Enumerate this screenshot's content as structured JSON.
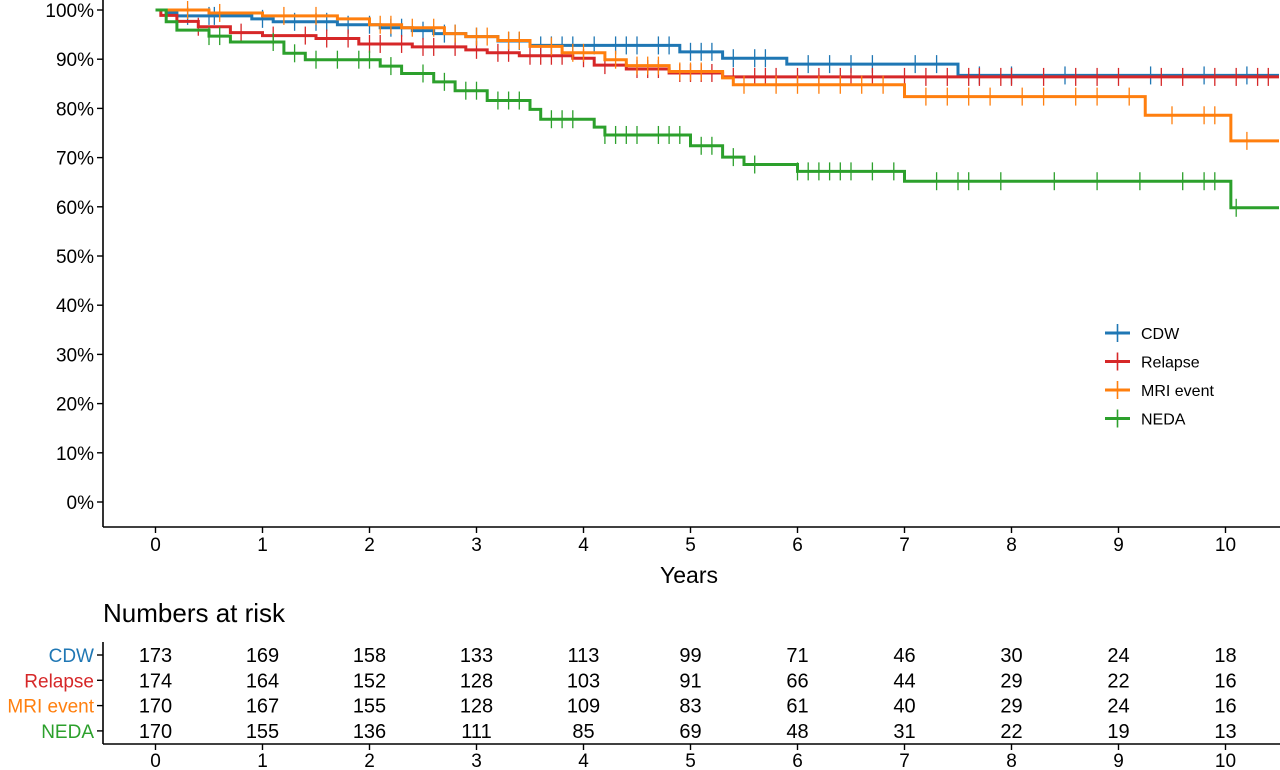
{
  "chart_data": [
    {
      "type": "line",
      "subtype": "kaplan-meier step curve with censor marks",
      "title": "",
      "xlabel": "Years",
      "ylabel": "",
      "xlim": [
        -0.5,
        10.5
      ],
      "ylim": [
        0,
        100
      ],
      "x_ticks": [
        0,
        1,
        2,
        3,
        4,
        5,
        6,
        7,
        8,
        9,
        10
      ],
      "x_tick_labels": [
        "0",
        "1",
        "2",
        "3",
        "4",
        "5",
        "6",
        "7",
        "8",
        "9",
        "10"
      ],
      "y_ticks": [
        0,
        10,
        20,
        30,
        40,
        50,
        60,
        70,
        80,
        90,
        100
      ],
      "y_tick_labels": [
        "0%",
        "10%",
        "20%",
        "30%",
        "40%",
        "50%",
        "60%",
        "70%",
        "80%",
        "90%",
        "100%"
      ],
      "grid": false,
      "legend_position": "right, lower half of plot",
      "series": [
        {
          "name": "CDW",
          "color": "#1f77b4",
          "steps": [
            [
              0,
              100
            ],
            [
              0.1,
              99.4
            ],
            [
              0.2,
              98.8
            ],
            [
              0.6,
              98.8
            ],
            [
              0.9,
              98.2
            ],
            [
              1.1,
              97.6
            ],
            [
              1.7,
              97.0
            ],
            [
              2.1,
              96.4
            ],
            [
              2.4,
              95.8
            ],
            [
              2.6,
              95.2
            ],
            [
              2.9,
              94.6
            ],
            [
              3.2,
              93.7
            ],
            [
              3.5,
              92.8
            ],
            [
              4.6,
              92.8
            ],
            [
              4.9,
              91.5
            ],
            [
              5.3,
              90.2
            ],
            [
              5.5,
              90.2
            ],
            [
              5.9,
              89.0
            ],
            [
              7.45,
              89.0
            ],
            [
              7.5,
              86.7
            ],
            [
              10.5,
              86.7
            ]
          ],
          "censor_times": [
            0.3,
            0.5,
            0.55,
            1.0,
            1.3,
            1.5,
            1.6,
            1.8,
            2.0,
            2.2,
            2.3,
            2.5,
            2.7,
            2.8,
            3.0,
            3.3,
            3.4,
            3.6,
            3.7,
            3.8,
            3.9,
            4.1,
            4.3,
            4.4,
            4.5,
            4.7,
            4.8,
            5.0,
            5.1,
            5.2,
            5.4,
            5.6,
            5.7,
            6.1,
            6.3,
            6.5,
            6.7,
            7.1,
            7.3,
            7.7,
            8.0,
            8.5,
            9.3,
            9.8,
            10.2
          ]
        },
        {
          "name": "Relapse",
          "color": "#d62728",
          "steps": [
            [
              0,
              100
            ],
            [
              0.05,
              98.9
            ],
            [
              0.2,
              97.7
            ],
            [
              0.4,
              96.6
            ],
            [
              0.7,
              95.4
            ],
            [
              1.0,
              94.8
            ],
            [
              1.5,
              94.2
            ],
            [
              1.9,
              93.1
            ],
            [
              2.4,
              92.5
            ],
            [
              2.9,
              91.9
            ],
            [
              3.1,
              91.3
            ],
            [
              3.4,
              90.7
            ],
            [
              3.9,
              90.2
            ],
            [
              4.1,
              88.8
            ],
            [
              4.4,
              88.0
            ],
            [
              4.8,
              87.2
            ],
            [
              5.3,
              86.4
            ],
            [
              5.5,
              86.4
            ],
            [
              10.5,
              86.4
            ]
          ],
          "censor_times": [
            0.4,
            0.8,
            1.1,
            1.4,
            1.6,
            1.8,
            2.0,
            2.1,
            2.3,
            2.5,
            2.6,
            2.8,
            3.0,
            3.2,
            3.3,
            3.5,
            3.6,
            3.7,
            3.8,
            4.0,
            4.2,
            4.5,
            4.6,
            4.7,
            4.9,
            5.0,
            5.1,
            5.2,
            5.4,
            5.6,
            5.7,
            5.8,
            6.0,
            6.2,
            6.4,
            6.5,
            6.7,
            7.0,
            7.2,
            7.4,
            7.6,
            7.7,
            7.9,
            8.0,
            8.3,
            8.6,
            8.8,
            9.0,
            9.4,
            9.6,
            9.9,
            10.1,
            10.3,
            10.4
          ]
        },
        {
          "name": "MRI event",
          "color": "#ff7f0e",
          "steps": [
            [
              0,
              100
            ],
            [
              0.5,
              99.4
            ],
            [
              1.0,
              98.8
            ],
            [
              1.7,
              98.2
            ],
            [
              2.0,
              97.0
            ],
            [
              2.3,
              96.4
            ],
            [
              2.7,
              95.2
            ],
            [
              2.9,
              94.6
            ],
            [
              3.2,
              93.8
            ],
            [
              3.5,
              92.6
            ],
            [
              3.8,
              91.3
            ],
            [
              4.2,
              89.9
            ],
            [
              4.4,
              88.7
            ],
            [
              4.8,
              87.5
            ],
            [
              5.3,
              86.2
            ],
            [
              5.4,
              84.8
            ],
            [
              5.7,
              84.8
            ],
            [
              6.9,
              84.8
            ],
            [
              7.0,
              82.4
            ],
            [
              8.4,
              82.4
            ],
            [
              9.2,
              82.4
            ],
            [
              9.25,
              78.6
            ],
            [
              10.0,
              78.6
            ],
            [
              10.05,
              73.4
            ],
            [
              10.5,
              73.4
            ]
          ],
          "censor_times": [
            0.3,
            0.6,
            1.2,
            1.5,
            2.1,
            2.2,
            2.4,
            2.6,
            2.8,
            3.0,
            3.1,
            3.3,
            3.4,
            3.7,
            3.9,
            4.0,
            4.3,
            4.5,
            4.6,
            4.7,
            4.9,
            5.0,
            5.1,
            5.5,
            5.8,
            6.0,
            6.2,
            6.4,
            6.6,
            6.8,
            7.2,
            7.4,
            7.6,
            7.8,
            8.1,
            8.3,
            8.6,
            8.8,
            9.1,
            9.5,
            9.8,
            9.9,
            10.2
          ]
        },
        {
          "name": "NEDA",
          "color": "#2ca02c",
          "steps": [
            [
              0,
              100
            ],
            [
              0.1,
              97.6
            ],
            [
              0.2,
              95.9
            ],
            [
              0.5,
              94.7
            ],
            [
              0.7,
              93.5
            ],
            [
              1.2,
              91.2
            ],
            [
              1.4,
              89.9
            ],
            [
              2.0,
              89.9
            ],
            [
              2.1,
              88.6
            ],
            [
              2.3,
              87.1
            ],
            [
              2.6,
              85.4
            ],
            [
              2.8,
              83.6
            ],
            [
              3.1,
              81.6
            ],
            [
              3.5,
              79.8
            ],
            [
              3.6,
              77.8
            ],
            [
              4.0,
              77.8
            ],
            [
              4.1,
              76.2
            ],
            [
              4.2,
              74.6
            ],
            [
              4.9,
              74.6
            ],
            [
              5.0,
              72.4
            ],
            [
              5.3,
              70.1
            ],
            [
              5.5,
              68.6
            ],
            [
              6.0,
              67.2
            ],
            [
              6.9,
              67.2
            ],
            [
              7.0,
              65.2
            ],
            [
              10.0,
              65.2
            ],
            [
              10.05,
              59.8
            ],
            [
              10.5,
              59.8
            ]
          ],
          "censor_times": [
            0.5,
            0.6,
            1.1,
            1.3,
            1.5,
            1.7,
            1.9,
            2.0,
            2.2,
            2.5,
            2.7,
            2.9,
            3.0,
            3.2,
            3.3,
            3.4,
            3.7,
            3.8,
            3.9,
            4.2,
            4.3,
            4.4,
            4.5,
            4.7,
            4.8,
            4.9,
            5.1,
            5.2,
            5.4,
            5.6,
            6.0,
            6.1,
            6.2,
            6.3,
            6.4,
            6.5,
            6.7,
            6.9,
            7.3,
            7.5,
            7.6,
            7.9,
            8.4,
            8.8,
            9.2,
            9.6,
            9.8,
            9.9,
            10.1
          ]
        }
      ]
    },
    {
      "type": "table",
      "title": "Numbers at risk",
      "time_points": [
        "0",
        "1",
        "2",
        "3",
        "4",
        "5",
        "6",
        "7",
        "8",
        "9",
        "10"
      ],
      "rows": [
        {
          "label": "CDW",
          "color": "#1f77b4",
          "values": [
            "173",
            "169",
            "158",
            "133",
            "113",
            "99",
            "71",
            "46",
            "30",
            "24",
            "18"
          ]
        },
        {
          "label": "Relapse",
          "color": "#d62728",
          "values": [
            "174",
            "164",
            "152",
            "128",
            "103",
            "91",
            "66",
            "44",
            "29",
            "22",
            "16"
          ]
        },
        {
          "label": "MRI event",
          "color": "#ff7f0e",
          "values": [
            "170",
            "167",
            "155",
            "128",
            "109",
            "83",
            "61",
            "40",
            "29",
            "24",
            "16"
          ]
        },
        {
          "label": "NEDA",
          "color": "#2ca02c",
          "values": [
            "170",
            "155",
            "136",
            "111",
            "85",
            "69",
            "48",
            "31",
            "22",
            "19",
            "13"
          ]
        }
      ]
    }
  ]
}
